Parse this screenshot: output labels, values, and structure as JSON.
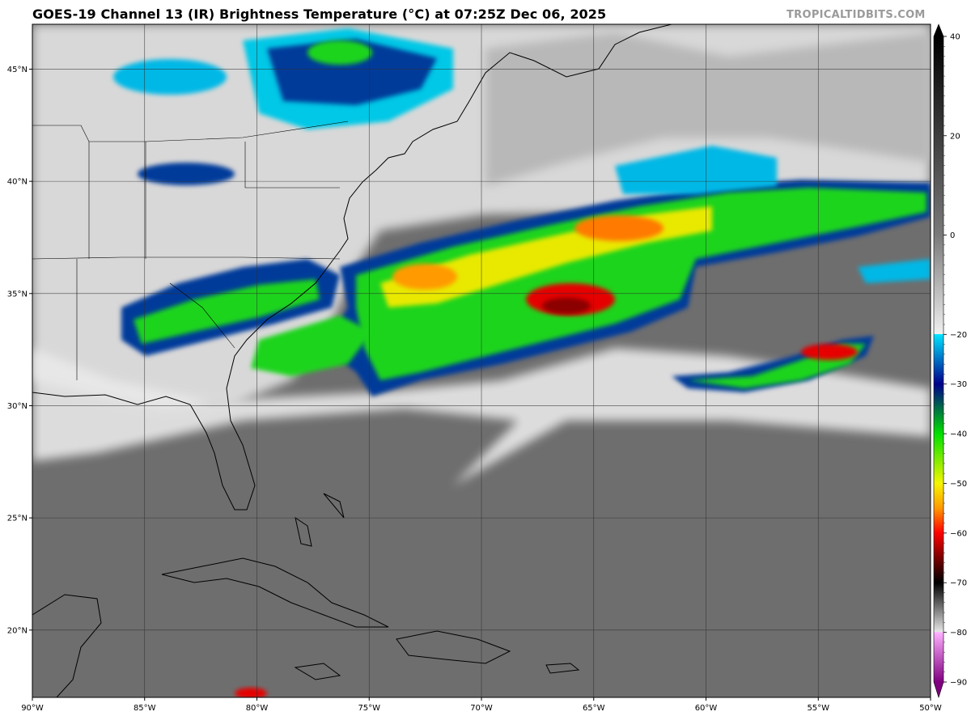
{
  "header": {
    "title": "GOES-19 Channel 13 (IR) Brightness Temperature (°C) at 07:25Z Dec 06, 2025",
    "credit": "TROPICALTIDBITS.COM"
  },
  "map": {
    "projection": "equirectangular",
    "lon_range": [
      -90,
      -50
    ],
    "lat_range": [
      17,
      47
    ],
    "lat_ticks": [
      {
        "value": 45,
        "label": "45°N"
      },
      {
        "value": 40,
        "label": "40°N"
      },
      {
        "value": 35,
        "label": "35°N"
      },
      {
        "value": 30,
        "label": "30°N"
      },
      {
        "value": 25,
        "label": "25°N"
      },
      {
        "value": 20,
        "label": "20°N"
      }
    ],
    "lon_ticks": [
      {
        "value": -90,
        "label": "90°W"
      },
      {
        "value": -85,
        "label": "85°W"
      },
      {
        "value": -80,
        "label": "80°W"
      },
      {
        "value": -75,
        "label": "75°W"
      },
      {
        "value": -70,
        "label": "70°W"
      },
      {
        "value": -65,
        "label": "65°W"
      },
      {
        "value": -60,
        "label": "60°W"
      },
      {
        "value": -55,
        "label": "55°W"
      },
      {
        "value": -50,
        "label": "50°W"
      }
    ],
    "gridlines": true,
    "colors": {
      "background_low_cloud": "#6e6e6e",
      "coastline": "#000000",
      "gridline": "#3a3a3a"
    }
  },
  "colorbar": {
    "range": [
      -90,
      40
    ],
    "ticks": [
      {
        "value": 40,
        "label": "40"
      },
      {
        "value": 20,
        "label": "20"
      },
      {
        "value": 0,
        "label": "0"
      },
      {
        "value": -20,
        "label": "−20"
      },
      {
        "value": -30,
        "label": "−30"
      },
      {
        "value": -40,
        "label": "−40"
      },
      {
        "value": -50,
        "label": "−50"
      },
      {
        "value": -60,
        "label": "−60"
      },
      {
        "value": -70,
        "label": "−70"
      },
      {
        "value": -80,
        "label": "−80"
      },
      {
        "value": -90,
        "label": "−90"
      }
    ],
    "stops": [
      {
        "value": 40,
        "color": "#000000"
      },
      {
        "value": 0,
        "color": "#7a7a7a"
      },
      {
        "value": -19.9,
        "color": "#f0f0f0"
      },
      {
        "value": -20,
        "color": "#00e5ff"
      },
      {
        "value": -30,
        "color": "#00008b"
      },
      {
        "value": -40,
        "color": "#00e000"
      },
      {
        "value": -50,
        "color": "#f5f500"
      },
      {
        "value": -55,
        "color": "#ff9900"
      },
      {
        "value": -60,
        "color": "#ff0000"
      },
      {
        "value": -65,
        "color": "#7a0000"
      },
      {
        "value": -70,
        "color": "#000000"
      },
      {
        "value": -79.9,
        "color": "#e6e6e6"
      },
      {
        "value": -80,
        "color": "#ffb0ff"
      },
      {
        "value": -90,
        "color": "#800080"
      }
    ]
  }
}
